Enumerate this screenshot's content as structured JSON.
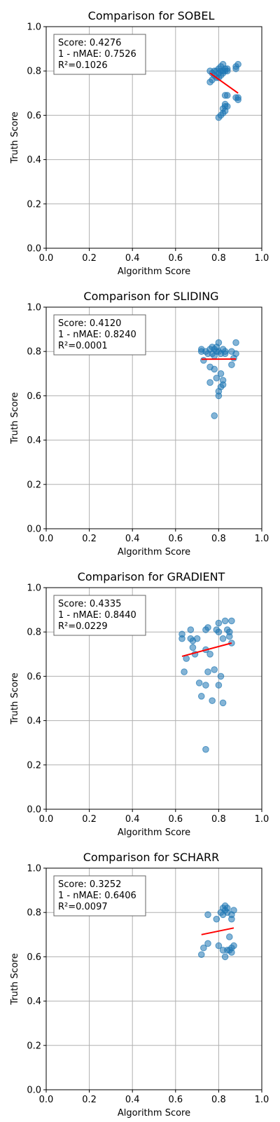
{
  "chart_data": [
    {
      "type": "scatter",
      "title": "Comparison for SOBEL",
      "xlabel": "Algorithm Score",
      "ylabel": "Truth Score",
      "xlim": [
        0,
        1
      ],
      "ylim": [
        0,
        1
      ],
      "xticks": [
        "0.0",
        "0.2",
        "0.4",
        "0.6",
        "0.8",
        "1.0"
      ],
      "yticks": [
        "0.0",
        "0.2",
        "0.4",
        "0.6",
        "0.8",
        "1.0"
      ],
      "grid": true,
      "stats": [
        "Score: 0.4276",
        "1 - nMAE: 0.7526",
        "R²=0.1026"
      ],
      "colors": {
        "points": "#1f77b4",
        "fit": "#ff0000"
      },
      "points": [
        [
          0.76,
          0.8
        ],
        [
          0.77,
          0.79
        ],
        [
          0.78,
          0.8
        ],
        [
          0.78,
          0.78
        ],
        [
          0.79,
          0.8
        ],
        [
          0.8,
          0.81
        ],
        [
          0.8,
          0.79
        ],
        [
          0.81,
          0.8
        ],
        [
          0.81,
          0.82
        ],
        [
          0.81,
          0.78
        ],
        [
          0.82,
          0.83
        ],
        [
          0.82,
          0.8
        ],
        [
          0.82,
          0.79
        ],
        [
          0.83,
          0.81
        ],
        [
          0.83,
          0.8
        ],
        [
          0.84,
          0.81
        ],
        [
          0.84,
          0.8
        ],
        [
          0.88,
          0.81
        ],
        [
          0.88,
          0.82
        ],
        [
          0.89,
          0.83
        ],
        [
          0.76,
          0.75
        ],
        [
          0.77,
          0.76
        ],
        [
          0.79,
          0.77
        ],
        [
          0.8,
          0.77
        ],
        [
          0.83,
          0.69
        ],
        [
          0.84,
          0.69
        ],
        [
          0.88,
          0.68
        ],
        [
          0.89,
          0.68
        ],
        [
          0.89,
          0.67
        ],
        [
          0.83,
          0.65
        ],
        [
          0.83,
          0.64
        ],
        [
          0.82,
          0.63
        ],
        [
          0.84,
          0.64
        ],
        [
          0.82,
          0.61
        ],
        [
          0.83,
          0.62
        ],
        [
          0.81,
          0.6
        ],
        [
          0.8,
          0.59
        ]
      ],
      "fit_line": [
        [
          0.76,
          0.79
        ],
        [
          0.89,
          0.7
        ]
      ]
    },
    {
      "type": "scatter",
      "title": "Comparison for SLIDING",
      "xlabel": "Algorithm Score",
      "ylabel": "Truth Score",
      "xlim": [
        0,
        1
      ],
      "ylim": [
        0,
        1
      ],
      "xticks": [
        "0.0",
        "0.2",
        "0.4",
        "0.6",
        "0.8",
        "1.0"
      ],
      "yticks": [
        "0.0",
        "0.2",
        "0.4",
        "0.6",
        "0.8",
        "1.0"
      ],
      "grid": true,
      "stats": [
        "Score: 0.4120",
        "1 - nMAE: 0.8240",
        "R²=0.0001"
      ],
      "colors": {
        "points": "#1f77b4",
        "fit": "#ff0000"
      },
      "points": [
        [
          0.72,
          0.81
        ],
        [
          0.72,
          0.8
        ],
        [
          0.74,
          0.8
        ],
        [
          0.75,
          0.79
        ],
        [
          0.76,
          0.81
        ],
        [
          0.77,
          0.82
        ],
        [
          0.77,
          0.79
        ],
        [
          0.78,
          0.81
        ],
        [
          0.78,
          0.78
        ],
        [
          0.79,
          0.82
        ],
        [
          0.79,
          0.8
        ],
        [
          0.8,
          0.84
        ],
        [
          0.8,
          0.8
        ],
        [
          0.81,
          0.79
        ],
        [
          0.82,
          0.81
        ],
        [
          0.83,
          0.8
        ],
        [
          0.83,
          0.79
        ],
        [
          0.86,
          0.8
        ],
        [
          0.87,
          0.77
        ],
        [
          0.88,
          0.84
        ],
        [
          0.88,
          0.79
        ],
        [
          0.73,
          0.76
        ],
        [
          0.76,
          0.73
        ],
        [
          0.78,
          0.72
        ],
        [
          0.81,
          0.7
        ],
        [
          0.79,
          0.68
        ],
        [
          0.76,
          0.66
        ],
        [
          0.82,
          0.67
        ],
        [
          0.82,
          0.65
        ],
        [
          0.81,
          0.64
        ],
        [
          0.8,
          0.62
        ],
        [
          0.8,
          0.6
        ],
        [
          0.86,
          0.74
        ],
        [
          0.78,
          0.51
        ]
      ],
      "fit_line": [
        [
          0.72,
          0.765
        ],
        [
          0.88,
          0.766
        ]
      ]
    },
    {
      "type": "scatter",
      "title": "Comparison for GRADIENT",
      "xlabel": "Algorithm Score",
      "ylabel": "Truth Score",
      "xlim": [
        0,
        1
      ],
      "ylim": [
        0,
        1
      ],
      "xticks": [
        "0.0",
        "0.2",
        "0.4",
        "0.6",
        "0.8",
        "1.0"
      ],
      "yticks": [
        "0.0",
        "0.2",
        "0.4",
        "0.6",
        "0.8",
        "1.0"
      ],
      "grid": true,
      "stats": [
        "Score: 0.4335",
        "1 - nMAE: 0.8440",
        "R²=0.0229"
      ],
      "colors": {
        "points": "#1f77b4",
        "fit": "#ff0000"
      },
      "points": [
        [
          0.63,
          0.79
        ],
        [
          0.63,
          0.77
        ],
        [
          0.65,
          0.68
        ],
        [
          0.64,
          0.62
        ],
        [
          0.67,
          0.81
        ],
        [
          0.67,
          0.77
        ],
        [
          0.68,
          0.76
        ],
        [
          0.68,
          0.73
        ],
        [
          0.69,
          0.7
        ],
        [
          0.7,
          0.77
        ],
        [
          0.71,
          0.57
        ],
        [
          0.72,
          0.51
        ],
        [
          0.74,
          0.81
        ],
        [
          0.74,
          0.72
        ],
        [
          0.74,
          0.56
        ],
        [
          0.75,
          0.82
        ],
        [
          0.76,
          0.7
        ],
        [
          0.75,
          0.62
        ],
        [
          0.77,
          0.49
        ],
        [
          0.78,
          0.63
        ],
        [
          0.79,
          0.81
        ],
        [
          0.8,
          0.84
        ],
        [
          0.8,
          0.8
        ],
        [
          0.8,
          0.56
        ],
        [
          0.81,
          0.6
        ],
        [
          0.82,
          0.77
        ],
        [
          0.82,
          0.48
        ],
        [
          0.83,
          0.85
        ],
        [
          0.84,
          0.81
        ],
        [
          0.85,
          0.8
        ],
        [
          0.85,
          0.78
        ],
        [
          0.86,
          0.85
        ],
        [
          0.86,
          0.75
        ],
        [
          0.74,
          0.27
        ]
      ],
      "fit_line": [
        [
          0.63,
          0.69
        ],
        [
          0.86,
          0.75
        ]
      ]
    },
    {
      "type": "scatter",
      "title": "Comparison for SCHARR",
      "xlabel": "Algorithm Score",
      "ylabel": "Truth Score",
      "xlim": [
        0,
        1
      ],
      "ylim": [
        0,
        1
      ],
      "xticks": [
        "0.0",
        "0.2",
        "0.4",
        "0.6",
        "0.8",
        "1.0"
      ],
      "yticks": [
        "0.0",
        "0.2",
        "0.4",
        "0.6",
        "0.8",
        "1.0"
      ],
      "grid": true,
      "stats": [
        "Score: 0.3252",
        "1 - nMAE: 0.6406",
        "R²=0.0097"
      ],
      "colors": {
        "points": "#1f77b4",
        "fit": "#ff0000"
      },
      "points": [
        [
          0.72,
          0.61
        ],
        [
          0.73,
          0.64
        ],
        [
          0.75,
          0.79
        ],
        [
          0.75,
          0.66
        ],
        [
          0.79,
          0.77
        ],
        [
          0.8,
          0.65
        ],
        [
          0.81,
          0.8
        ],
        [
          0.82,
          0.82
        ],
        [
          0.82,
          0.79
        ],
        [
          0.82,
          0.63
        ],
        [
          0.83,
          0.83
        ],
        [
          0.83,
          0.81
        ],
        [
          0.84,
          0.82
        ],
        [
          0.84,
          0.8
        ],
        [
          0.83,
          0.6
        ],
        [
          0.85,
          0.69
        ],
        [
          0.85,
          0.63
        ],
        [
          0.86,
          0.79
        ],
        [
          0.86,
          0.77
        ],
        [
          0.86,
          0.64
        ],
        [
          0.87,
          0.81
        ],
        [
          0.87,
          0.65
        ],
        [
          0.84,
          0.63
        ],
        [
          0.86,
          0.62
        ]
      ],
      "fit_line": [
        [
          0.72,
          0.7
        ],
        [
          0.87,
          0.73
        ]
      ]
    }
  ]
}
